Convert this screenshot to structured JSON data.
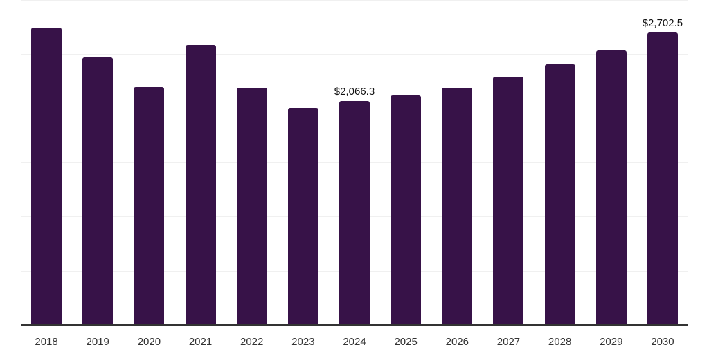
{
  "chart_data": {
    "type": "bar",
    "title": "",
    "xlabel": "",
    "ylabel": "",
    "categories": [
      "2018",
      "2019",
      "2020",
      "2021",
      "2022",
      "2023",
      "2024",
      "2025",
      "2026",
      "2027",
      "2028",
      "2029",
      "2030"
    ],
    "values": [
      2747,
      2472,
      2198,
      2587,
      2191,
      2006,
      2066.3,
      2121,
      2191,
      2293,
      2408,
      2536,
      2702.5
    ],
    "data_labels": [
      {
        "category": "2024",
        "text": "$2,066.3"
      },
      {
        "category": "2030",
        "text": "$2,702.5"
      }
    ],
    "ylim": [
      0,
      3000
    ],
    "y_gridlines": [
      500,
      1000,
      1500,
      2000,
      2500,
      3000
    ],
    "y_tick_labels_visible": false,
    "grid": true,
    "legend": null,
    "bar_color": "#371248",
    "unit_prefix": "$"
  }
}
